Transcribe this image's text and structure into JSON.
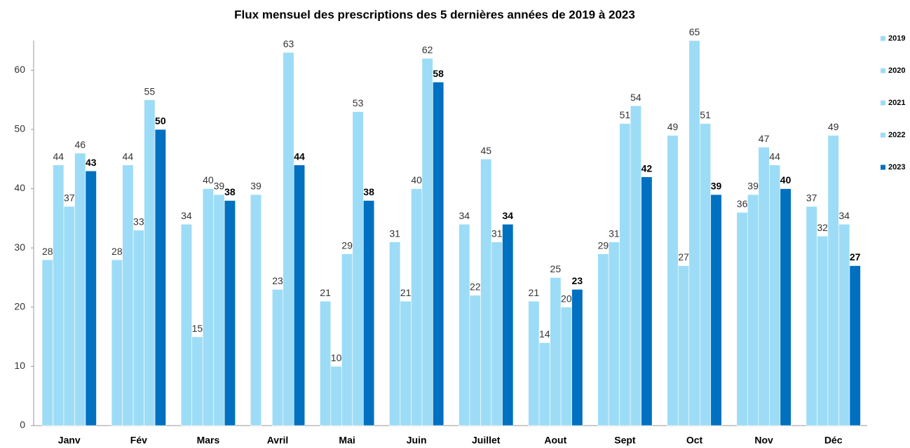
{
  "chart_data": {
    "type": "bar",
    "title": "Flux mensuel des prescriptions  des 5 dernières années de 2019 à  2023",
    "categories": [
      "Janv",
      "Fév",
      "Mars",
      "Avril",
      "Mai",
      "Juin",
      "Juillet",
      "Aout",
      "Sept",
      "Oct",
      "Nov",
      "Déc"
    ],
    "series": [
      {
        "name": "2019",
        "color": "#9ddcf6",
        "values": [
          28,
          28,
          34,
          39,
          21,
          31,
          34,
          21,
          29,
          49,
          36,
          37
        ]
      },
      {
        "name": "2020",
        "color": "#9ddcf6",
        "values": [
          44,
          44,
          15,
          null,
          10,
          21,
          22,
          14,
          31,
          27,
          39,
          32
        ]
      },
      {
        "name": "2021",
        "color": "#9ddcf6",
        "values": [
          37,
          33,
          40,
          23,
          29,
          40,
          45,
          25,
          51,
          65,
          47,
          49
        ]
      },
      {
        "name": "2022",
        "color": "#9ddcf6",
        "values": [
          46,
          55,
          39,
          63,
          53,
          62,
          31,
          20,
          54,
          51,
          44,
          34
        ]
      },
      {
        "name": "2023",
        "color": "#0070c0",
        "values": [
          43,
          50,
          38,
          44,
          38,
          58,
          34,
          23,
          42,
          39,
          40,
          27
        ]
      }
    ],
    "ylim": [
      0,
      65
    ],
    "yticks": [
      0,
      10,
      20,
      30,
      40,
      50,
      60
    ],
    "grid": false,
    "legend": "right"
  }
}
